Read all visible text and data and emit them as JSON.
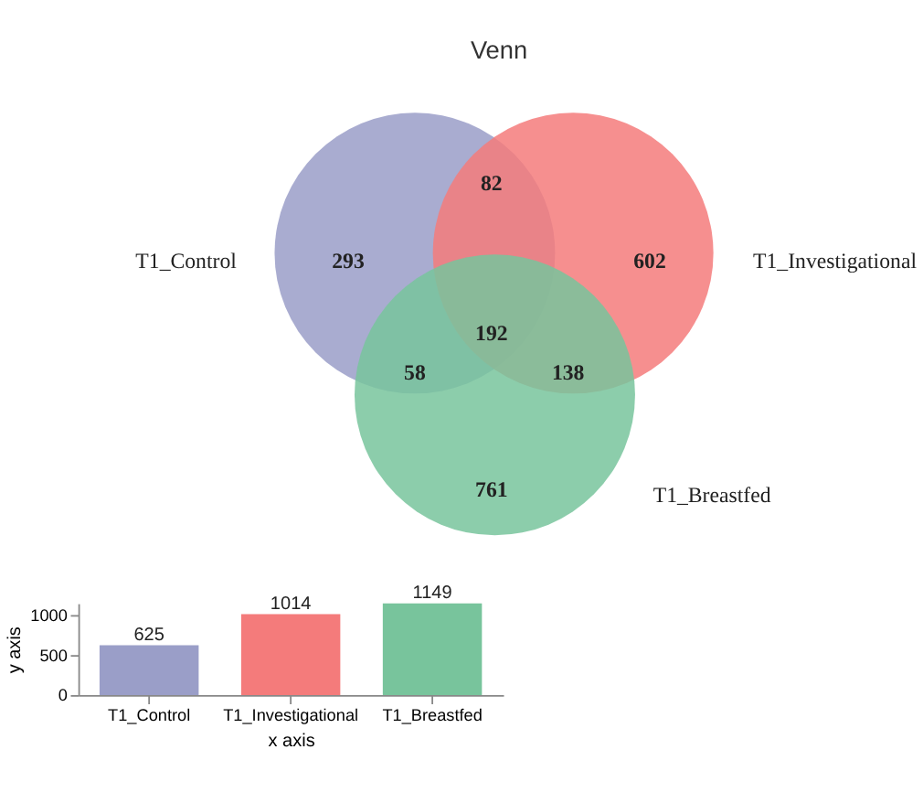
{
  "chart_data": [
    {
      "type": "other",
      "title": "Venn",
      "categories": [
        "T1_Control",
        "T1_Investigational",
        "T1_Breastfed"
      ],
      "colors": [
        "#9a9ec8",
        "#f47b7b",
        "#78c49c"
      ],
      "annotations": [
        "293",
        "82",
        "602",
        "192",
        "58",
        "138",
        "761"
      ]
    },
    {
      "type": "bar",
      "categories": [
        "T1_Control",
        "T1_Investigational",
        "T1_Breastfed"
      ],
      "values": [
        625,
        1014,
        1149
      ],
      "colors": [
        "#9a9ec8",
        "#f47b7b",
        "#78c49c"
      ],
      "ylim": [
        0,
        1149
      ],
      "yticks": [
        0,
        500,
        1000
      ],
      "xlabel": "x axis",
      "ylabel": "y axis",
      "data_labels": true,
      "grid": false
    }
  ]
}
